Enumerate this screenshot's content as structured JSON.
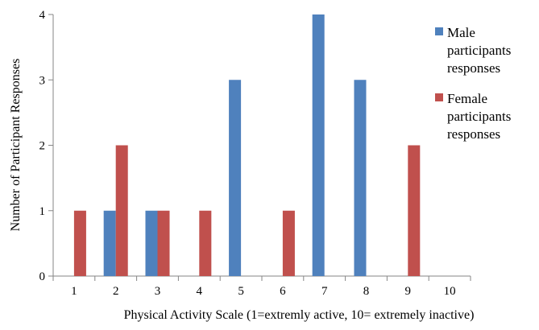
{
  "chart_data": {
    "type": "bar",
    "title": "",
    "xlabel": "Physical Activity Scale (1=extremly active, 10= extremely inactive)",
    "ylabel": "Number of Participant Responses",
    "categories": [
      "1",
      "2",
      "3",
      "4",
      "5",
      "6",
      "7",
      "8",
      "9",
      "10"
    ],
    "yticks": [
      "0",
      "1",
      "2",
      "3",
      "4"
    ],
    "ylim": [
      0,
      4
    ],
    "grid": false,
    "legend_position": "right",
    "series": [
      {
        "name": "Male participants responses",
        "legend_lines": [
          "Male",
          "participants",
          "responses"
        ],
        "color": "#4F81BD",
        "values": [
          0,
          1,
          1,
          0,
          3,
          0,
          4,
          3,
          0,
          0
        ]
      },
      {
        "name": "Female participants responses",
        "legend_lines": [
          "Female",
          "participants",
          "responses"
        ],
        "color": "#C0504D",
        "values": [
          1,
          2,
          1,
          1,
          0,
          1,
          0,
          0,
          2,
          0
        ]
      }
    ]
  }
}
